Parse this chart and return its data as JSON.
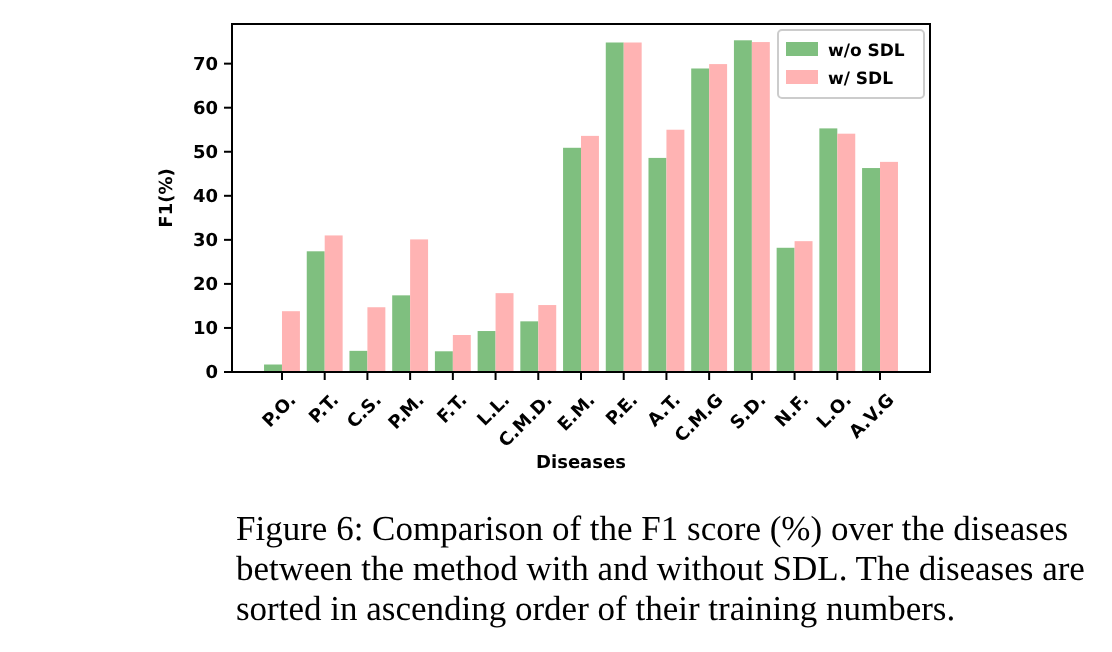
{
  "chart_data": {
    "type": "bar",
    "xlabel": "Diseases",
    "ylabel": "F1(%)",
    "categories": [
      "P.O.",
      "P.T.",
      "C.S.",
      "P.M.",
      "F.T.",
      "L.L.",
      "C.M.D.",
      "E.M.",
      "P.E.",
      "A.T.",
      "C.M.G",
      "S.D.",
      "N.F.",
      "L.O.",
      "A.V.G"
    ],
    "series": [
      {
        "name": "w/o SDL",
        "color": "#7fbf7f",
        "values": [
          1.7,
          27.4,
          4.8,
          17.4,
          4.7,
          9.3,
          11.5,
          50.9,
          74.8,
          48.6,
          68.9,
          75.3,
          28.2,
          55.3,
          46.3
        ]
      },
      {
        "name": "w/ SDL",
        "color": "#ffb3b3",
        "values": [
          13.8,
          31.0,
          14.7,
          30.1,
          8.4,
          17.9,
          15.2,
          53.6,
          74.8,
          55.0,
          69.9,
          74.9,
          29.7,
          54.1,
          47.7
        ]
      }
    ],
    "ylim": [
      0,
      79
    ],
    "yticks": [
      0,
      10,
      20,
      30,
      40,
      50,
      60,
      70
    ],
    "legend": "top right",
    "annotations": [
      "Figure 6: Comparison of the F1 score (%) over the diseases between the method with and without SDL. The diseases are sorted in ascending order of their training numbers."
    ]
  }
}
